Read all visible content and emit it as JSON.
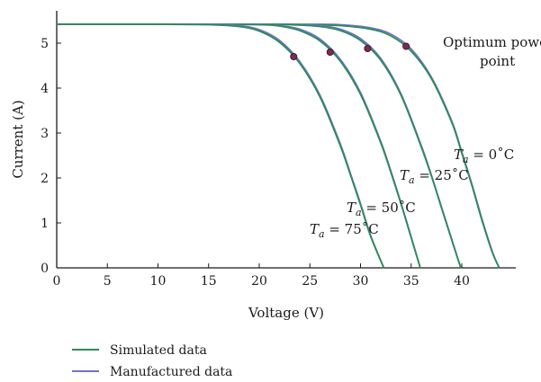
{
  "chart_data": {
    "type": "line",
    "xlabel": "Voltage (V)",
    "ylabel": "Current (A)",
    "xlim": [
      0,
      45
    ],
    "ylim": [
      0,
      5.8
    ],
    "x_ticks": [
      0,
      5,
      10,
      15,
      20,
      25,
      30,
      35,
      40
    ],
    "y_ticks": [
      0,
      1,
      2,
      3,
      4,
      5
    ],
    "legend": [
      "Simulated data",
      "Manufactured data"
    ],
    "legend_position": "bottom-left",
    "colors": {
      "simulated": "#2e8b57",
      "manufactured": "#6f73c9",
      "mpp": "#7a2a50"
    },
    "series": [
      {
        "temp_label": "= 0˚C",
        "isc": 5.42,
        "voc": 43.7,
        "mpp": {
          "v": 34.5,
          "i": 4.93
        },
        "simulated": [
          [
            0,
            5.42
          ],
          [
            5,
            5.42
          ],
          [
            10,
            5.42
          ],
          [
            15,
            5.42
          ],
          [
            20,
            5.42
          ],
          [
            25,
            5.41
          ],
          [
            28,
            5.39
          ],
          [
            31,
            5.31
          ],
          [
            33,
            5.16
          ],
          [
            35,
            4.82
          ],
          [
            37,
            4.21
          ],
          [
            39,
            3.24
          ],
          [
            40,
            2.55
          ],
          [
            41,
            1.83
          ],
          [
            42,
            1.05
          ],
          [
            43,
            0.35
          ],
          [
            43.7,
            0
          ]
        ],
        "manufactured": [
          [
            0,
            5.42
          ],
          [
            5,
            5.42
          ],
          [
            10,
            5.42
          ],
          [
            15,
            5.42
          ],
          [
            20,
            5.42
          ],
          [
            25,
            5.42
          ],
          [
            28,
            5.41
          ],
          [
            31,
            5.34
          ],
          [
            33,
            5.2
          ],
          [
            35,
            4.87
          ],
          [
            37,
            4.24
          ],
          [
            39,
            3.27
          ],
          [
            40,
            2.58
          ],
          [
            41,
            1.86
          ],
          [
            42,
            1.08
          ],
          [
            43,
            0.37
          ],
          [
            43.7,
            0
          ]
        ]
      },
      {
        "temp_label": "= 25˚C",
        "isc": 5.42,
        "voc": 39.9,
        "mpp": {
          "v": 30.7,
          "i": 4.88
        },
        "simulated": [
          [
            0,
            5.42
          ],
          [
            5,
            5.42
          ],
          [
            10,
            5.42
          ],
          [
            15,
            5.42
          ],
          [
            20,
            5.42
          ],
          [
            23,
            5.41
          ],
          [
            26,
            5.37
          ],
          [
            28,
            5.28
          ],
          [
            30,
            5.06
          ],
          [
            32,
            4.62
          ],
          [
            34,
            3.84
          ],
          [
            36,
            2.69
          ],
          [
            37,
            2.04
          ],
          [
            38,
            1.33
          ],
          [
            39,
            0.62
          ],
          [
            39.9,
            0
          ]
        ],
        "manufactured": [
          [
            0,
            5.42
          ],
          [
            5,
            5.42
          ],
          [
            10,
            5.42
          ],
          [
            15,
            5.42
          ],
          [
            20,
            5.42
          ],
          [
            23,
            5.42
          ],
          [
            26,
            5.39
          ],
          [
            28,
            5.31
          ],
          [
            30,
            5.1
          ],
          [
            32,
            4.66
          ],
          [
            34,
            3.87
          ],
          [
            36,
            2.72
          ],
          [
            37,
            2.06
          ],
          [
            38,
            1.35
          ],
          [
            39,
            0.64
          ],
          [
            39.9,
            0
          ]
        ]
      },
      {
        "temp_label": "= 50˚C",
        "isc": 5.42,
        "voc": 35.9,
        "mpp": {
          "v": 27.0,
          "i": 4.8
        },
        "simulated": [
          [
            0,
            5.42
          ],
          [
            5,
            5.42
          ],
          [
            10,
            5.42
          ],
          [
            15,
            5.42
          ],
          [
            20,
            5.41
          ],
          [
            22,
            5.38
          ],
          [
            24,
            5.28
          ],
          [
            26,
            5.05
          ],
          [
            28,
            4.6
          ],
          [
            30,
            3.86
          ],
          [
            32,
            2.78
          ],
          [
            33,
            2.12
          ],
          [
            34,
            1.42
          ],
          [
            35,
            0.67
          ],
          [
            35.9,
            0
          ]
        ],
        "manufactured": [
          [
            0,
            5.42
          ],
          [
            5,
            5.42
          ],
          [
            10,
            5.42
          ],
          [
            15,
            5.42
          ],
          [
            20,
            5.42
          ],
          [
            22,
            5.39
          ],
          [
            24,
            5.31
          ],
          [
            26,
            5.09
          ],
          [
            28,
            4.64
          ],
          [
            30,
            3.9
          ],
          [
            32,
            2.81
          ],
          [
            33,
            2.15
          ],
          [
            34,
            1.44
          ],
          [
            35,
            0.69
          ],
          [
            35.9,
            0
          ]
        ]
      },
      {
        "temp_label": "= 75˚C",
        "isc": 5.42,
        "voc": 32.3,
        "mpp": {
          "v": 23.4,
          "i": 4.7
        },
        "simulated": [
          [
            0,
            5.42
          ],
          [
            5,
            5.42
          ],
          [
            10,
            5.42
          ],
          [
            15,
            5.41
          ],
          [
            18,
            5.37
          ],
          [
            20,
            5.27
          ],
          [
            22,
            5.02
          ],
          [
            24,
            4.55
          ],
          [
            26,
            3.8
          ],
          [
            28,
            2.72
          ],
          [
            29,
            2.07
          ],
          [
            30,
            1.4
          ],
          [
            31,
            0.7
          ],
          [
            32.3,
            0
          ]
        ],
        "manufactured": [
          [
            0,
            5.42
          ],
          [
            5,
            5.42
          ],
          [
            10,
            5.42
          ],
          [
            15,
            5.42
          ],
          [
            18,
            5.39
          ],
          [
            20,
            5.3
          ],
          [
            22,
            5.06
          ],
          [
            24,
            4.59
          ],
          [
            26,
            3.84
          ],
          [
            28,
            2.76
          ],
          [
            29,
            2.1
          ],
          [
            30,
            1.43
          ],
          [
            31,
            0.72
          ],
          [
            32.3,
            0
          ]
        ]
      }
    ],
    "annotations": {
      "mpp_label_line1": "Optimum power",
      "mpp_label_line2": "point",
      "temp_prefix": "T",
      "temp_subscript": "a"
    }
  }
}
